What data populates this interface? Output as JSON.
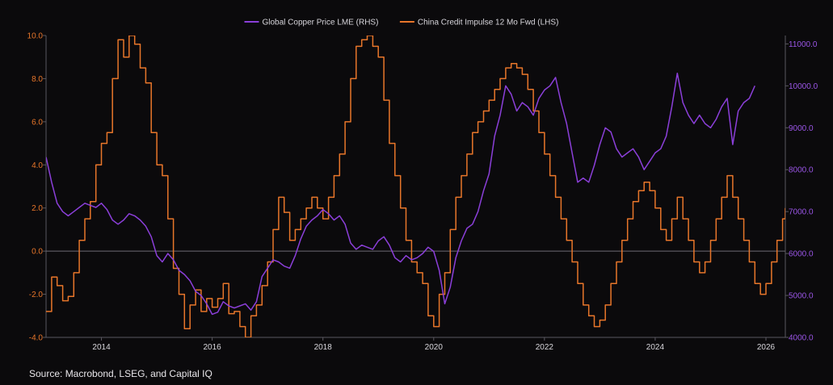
{
  "chart_data": {
    "type": "line",
    "title": "",
    "legend": {
      "placement": "top-center",
      "items": [
        {
          "label": "Global Copper Price LME (RHS)",
          "color": "#8b3fd9"
        },
        {
          "label": "China Credit Impulse 12 Mo Fwd (LHS)",
          "color": "#e8762a"
        }
      ]
    },
    "x_axis": {
      "range": [
        2013.0,
        2026.35
      ],
      "ticks": [
        {
          "value": 2014,
          "label": "2014"
        },
        {
          "value": 2016,
          "label": "2016"
        },
        {
          "value": 2018,
          "label": "2018"
        },
        {
          "value": 2020,
          "label": "2020"
        },
        {
          "value": 2022,
          "label": "2022"
        },
        {
          "value": 2024,
          "label": "2024"
        },
        {
          "value": 2026,
          "label": "2026"
        }
      ]
    },
    "y_left": {
      "range": [
        -4.0,
        10.0
      ],
      "ticks": [
        {
          "value": 10.0,
          "label": "10.0"
        },
        {
          "value": 8.0,
          "label": "8.0"
        },
        {
          "value": 6.0,
          "label": "6.0"
        },
        {
          "value": 4.0,
          "label": "4.0"
        },
        {
          "value": 2.0,
          "label": "2.0"
        },
        {
          "value": 0.0,
          "label": "0.0"
        },
        {
          "value": -2.0,
          "label": "-2.0"
        },
        {
          "value": -4.0,
          "label": "-4.0"
        }
      ],
      "color": "#e8762a"
    },
    "y_right": {
      "range": [
        4000,
        11200
      ],
      "ticks": [
        {
          "value": 11000,
          "label": "11000.0"
        },
        {
          "value": 10000,
          "label": "10000.0"
        },
        {
          "value": 9000,
          "label": "9000.0"
        },
        {
          "value": 8000,
          "label": "8000.0"
        },
        {
          "value": 7000,
          "label": "7000.0"
        },
        {
          "value": 6000,
          "label": "6000.0"
        },
        {
          "value": 5000,
          "label": "5000.0"
        },
        {
          "value": 4000,
          "label": "4000.0"
        }
      ],
      "color": "#9a55e6"
    },
    "zero_line": true,
    "grid": false,
    "series": [
      {
        "name": "China Credit Impulse 12 Mo Fwd (LHS)",
        "axis": "left",
        "color": "#e8762a",
        "step": true,
        "points": [
          [
            2013.0,
            -2.8
          ],
          [
            2013.1,
            -1.2
          ],
          [
            2013.2,
            -1.6
          ],
          [
            2013.3,
            -2.3
          ],
          [
            2013.4,
            -2.1
          ],
          [
            2013.5,
            -1.0
          ],
          [
            2013.6,
            0.5
          ],
          [
            2013.7,
            1.5
          ],
          [
            2013.8,
            2.3
          ],
          [
            2013.9,
            4.0
          ],
          [
            2014.0,
            5.0
          ],
          [
            2014.1,
            5.5
          ],
          [
            2014.2,
            8.0
          ],
          [
            2014.3,
            9.8
          ],
          [
            2014.4,
            9.0
          ],
          [
            2014.5,
            10.0
          ],
          [
            2014.6,
            9.6
          ],
          [
            2014.7,
            8.5
          ],
          [
            2014.8,
            7.8
          ],
          [
            2014.9,
            5.5
          ],
          [
            2015.0,
            4.0
          ],
          [
            2015.1,
            3.5
          ],
          [
            2015.2,
            1.5
          ],
          [
            2015.3,
            -0.8
          ],
          [
            2015.4,
            -2.0
          ],
          [
            2015.5,
            -3.6
          ],
          [
            2015.6,
            -2.5
          ],
          [
            2015.7,
            -1.8
          ],
          [
            2015.8,
            -2.8
          ],
          [
            2015.9,
            -2.2
          ],
          [
            2016.0,
            -2.6
          ],
          [
            2016.1,
            -2.2
          ],
          [
            2016.2,
            -1.5
          ],
          [
            2016.3,
            -2.9
          ],
          [
            2016.4,
            -2.8
          ],
          [
            2016.5,
            -3.5
          ],
          [
            2016.6,
            -4.0
          ],
          [
            2016.7,
            -3.0
          ],
          [
            2016.8,
            -2.5
          ],
          [
            2016.9,
            -1.6
          ],
          [
            2017.0,
            -0.5
          ],
          [
            2017.1,
            1.0
          ],
          [
            2017.2,
            2.5
          ],
          [
            2017.3,
            1.8
          ],
          [
            2017.4,
            0.5
          ],
          [
            2017.5,
            1.0
          ],
          [
            2017.6,
            1.5
          ],
          [
            2017.7,
            2.0
          ],
          [
            2017.8,
            2.5
          ],
          [
            2017.9,
            2.0
          ],
          [
            2018.0,
            1.5
          ],
          [
            2018.1,
            2.5
          ],
          [
            2018.2,
            3.5
          ],
          [
            2018.3,
            4.5
          ],
          [
            2018.4,
            6.0
          ],
          [
            2018.5,
            8.0
          ],
          [
            2018.6,
            9.5
          ],
          [
            2018.7,
            9.8
          ],
          [
            2018.8,
            10.0
          ],
          [
            2018.9,
            9.5
          ],
          [
            2019.0,
            9.0
          ],
          [
            2019.1,
            7.0
          ],
          [
            2019.2,
            5.0
          ],
          [
            2019.3,
            3.5
          ],
          [
            2019.4,
            2.0
          ],
          [
            2019.5,
            0.5
          ],
          [
            2019.6,
            -0.5
          ],
          [
            2019.7,
            -1.0
          ],
          [
            2019.8,
            -1.5
          ],
          [
            2019.9,
            -3.0
          ],
          [
            2020.0,
            -3.5
          ],
          [
            2020.1,
            -2.0
          ],
          [
            2020.2,
            -1.0
          ],
          [
            2020.3,
            1.0
          ],
          [
            2020.4,
            2.5
          ],
          [
            2020.5,
            3.5
          ],
          [
            2020.6,
            4.5
          ],
          [
            2020.7,
            5.5
          ],
          [
            2020.8,
            6.0
          ],
          [
            2020.9,
            6.5
          ],
          [
            2021.0,
            7.0
          ],
          [
            2021.1,
            7.5
          ],
          [
            2021.2,
            8.0
          ],
          [
            2021.3,
            8.5
          ],
          [
            2021.4,
            8.7
          ],
          [
            2021.5,
            8.5
          ],
          [
            2021.6,
            8.2
          ],
          [
            2021.7,
            7.5
          ],
          [
            2021.8,
            6.5
          ],
          [
            2021.9,
            5.5
          ],
          [
            2022.0,
            4.5
          ],
          [
            2022.1,
            3.5
          ],
          [
            2022.2,
            2.5
          ],
          [
            2022.3,
            1.5
          ],
          [
            2022.4,
            0.5
          ],
          [
            2022.5,
            -0.5
          ],
          [
            2022.6,
            -1.5
          ],
          [
            2022.7,
            -2.5
          ],
          [
            2022.8,
            -3.0
          ],
          [
            2022.9,
            -3.5
          ],
          [
            2023.0,
            -3.2
          ],
          [
            2023.1,
            -2.5
          ],
          [
            2023.2,
            -1.5
          ],
          [
            2023.3,
            -0.5
          ],
          [
            2023.4,
            0.5
          ],
          [
            2023.5,
            1.5
          ],
          [
            2023.6,
            2.3
          ],
          [
            2023.7,
            2.8
          ],
          [
            2023.8,
            3.2
          ],
          [
            2023.9,
            2.8
          ],
          [
            2024.0,
            2.0
          ],
          [
            2024.1,
            1.0
          ],
          [
            2024.2,
            0.5
          ],
          [
            2024.3,
            1.5
          ],
          [
            2024.4,
            2.5
          ],
          [
            2024.5,
            1.5
          ],
          [
            2024.6,
            0.5
          ],
          [
            2024.7,
            -0.5
          ],
          [
            2024.8,
            -1.0
          ],
          [
            2024.9,
            -0.5
          ],
          [
            2025.0,
            0.5
          ],
          [
            2025.1,
            1.5
          ],
          [
            2025.2,
            2.5
          ],
          [
            2025.3,
            3.5
          ],
          [
            2025.4,
            2.5
          ],
          [
            2025.5,
            1.5
          ],
          [
            2025.6,
            0.5
          ],
          [
            2025.7,
            -0.5
          ],
          [
            2025.8,
            -1.5
          ],
          [
            2025.9,
            -2.0
          ],
          [
            2026.0,
            -1.5
          ],
          [
            2026.1,
            -0.5
          ],
          [
            2026.2,
            0.5
          ],
          [
            2026.3,
            1.5
          ],
          [
            2026.35,
            2.0
          ]
        ]
      },
      {
        "name": "Global Copper Price LME (RHS)",
        "axis": "right",
        "color": "#8b3fd9",
        "points": [
          [
            2013.0,
            8300
          ],
          [
            2013.1,
            7700
          ],
          [
            2013.2,
            7200
          ],
          [
            2013.3,
            7000
          ],
          [
            2013.4,
            6900
          ],
          [
            2013.5,
            7000
          ],
          [
            2013.6,
            7100
          ],
          [
            2013.7,
            7200
          ],
          [
            2013.8,
            7150
          ],
          [
            2013.9,
            7100
          ],
          [
            2014.0,
            7200
          ],
          [
            2014.1,
            7050
          ],
          [
            2014.2,
            6800
          ],
          [
            2014.3,
            6700
          ],
          [
            2014.4,
            6800
          ],
          [
            2014.5,
            6950
          ],
          [
            2014.6,
            6900
          ],
          [
            2014.7,
            6800
          ],
          [
            2014.8,
            6650
          ],
          [
            2014.9,
            6400
          ],
          [
            2015.0,
            5950
          ],
          [
            2015.1,
            5800
          ],
          [
            2015.2,
            6000
          ],
          [
            2015.3,
            5850
          ],
          [
            2015.4,
            5600
          ],
          [
            2015.5,
            5500
          ],
          [
            2015.6,
            5350
          ],
          [
            2015.7,
            5100
          ],
          [
            2015.8,
            5000
          ],
          [
            2015.9,
            4800
          ],
          [
            2016.0,
            4550
          ],
          [
            2016.1,
            4600
          ],
          [
            2016.2,
            4850
          ],
          [
            2016.3,
            4750
          ],
          [
            2016.4,
            4700
          ],
          [
            2016.5,
            4750
          ],
          [
            2016.6,
            4800
          ],
          [
            2016.7,
            4650
          ],
          [
            2016.8,
            4850
          ],
          [
            2016.9,
            5450
          ],
          [
            2017.0,
            5650
          ],
          [
            2017.1,
            5850
          ],
          [
            2017.2,
            5800
          ],
          [
            2017.3,
            5700
          ],
          [
            2017.4,
            5650
          ],
          [
            2017.5,
            5950
          ],
          [
            2017.6,
            6350
          ],
          [
            2017.7,
            6650
          ],
          [
            2017.8,
            6800
          ],
          [
            2017.9,
            6900
          ],
          [
            2018.0,
            7050
          ],
          [
            2018.1,
            6950
          ],
          [
            2018.2,
            6800
          ],
          [
            2018.3,
            6900
          ],
          [
            2018.4,
            6700
          ],
          [
            2018.5,
            6250
          ],
          [
            2018.6,
            6100
          ],
          [
            2018.7,
            6200
          ],
          [
            2018.8,
            6150
          ],
          [
            2018.9,
            6100
          ],
          [
            2019.0,
            6300
          ],
          [
            2019.1,
            6400
          ],
          [
            2019.2,
            6200
          ],
          [
            2019.3,
            5900
          ],
          [
            2019.4,
            5800
          ],
          [
            2019.5,
            5950
          ],
          [
            2019.6,
            5850
          ],
          [
            2019.7,
            5900
          ],
          [
            2019.8,
            6000
          ],
          [
            2019.9,
            6150
          ],
          [
            2020.0,
            6050
          ],
          [
            2020.1,
            5600
          ],
          [
            2020.2,
            4800
          ],
          [
            2020.3,
            5200
          ],
          [
            2020.4,
            5900
          ],
          [
            2020.5,
            6300
          ],
          [
            2020.6,
            6600
          ],
          [
            2020.7,
            6700
          ],
          [
            2020.8,
            7000
          ],
          [
            2020.9,
            7500
          ],
          [
            2021.0,
            7900
          ],
          [
            2021.1,
            8800
          ],
          [
            2021.2,
            9300
          ],
          [
            2021.3,
            10000
          ],
          [
            2021.4,
            9800
          ],
          [
            2021.5,
            9400
          ],
          [
            2021.6,
            9600
          ],
          [
            2021.7,
            9500
          ],
          [
            2021.8,
            9300
          ],
          [
            2021.9,
            9700
          ],
          [
            2022.0,
            9900
          ],
          [
            2022.1,
            10000
          ],
          [
            2022.2,
            10200
          ],
          [
            2022.3,
            9600
          ],
          [
            2022.4,
            9100
          ],
          [
            2022.5,
            8400
          ],
          [
            2022.6,
            7700
          ],
          [
            2022.7,
            7800
          ],
          [
            2022.8,
            7700
          ],
          [
            2022.9,
            8100
          ],
          [
            2023.0,
            8600
          ],
          [
            2023.1,
            9000
          ],
          [
            2023.2,
            8900
          ],
          [
            2023.3,
            8500
          ],
          [
            2023.4,
            8300
          ],
          [
            2023.5,
            8400
          ],
          [
            2023.6,
            8500
          ],
          [
            2023.7,
            8300
          ],
          [
            2023.8,
            8000
          ],
          [
            2023.9,
            8200
          ],
          [
            2024.0,
            8400
          ],
          [
            2024.1,
            8500
          ],
          [
            2024.2,
            8800
          ],
          [
            2024.3,
            9500
          ],
          [
            2024.4,
            10300
          ],
          [
            2024.5,
            9600
          ],
          [
            2024.6,
            9300
          ],
          [
            2024.7,
            9100
          ],
          [
            2024.8,
            9300
          ],
          [
            2024.9,
            9100
          ],
          [
            2025.0,
            9000
          ],
          [
            2025.1,
            9200
          ],
          [
            2025.2,
            9500
          ],
          [
            2025.3,
            9700
          ],
          [
            2025.4,
            8600
          ],
          [
            2025.5,
            9400
          ],
          [
            2025.6,
            9600
          ],
          [
            2025.7,
            9700
          ],
          [
            2025.8,
            10000
          ]
        ]
      }
    ],
    "source": "Source: Macrobond, LSEG, and Capital IQ"
  }
}
